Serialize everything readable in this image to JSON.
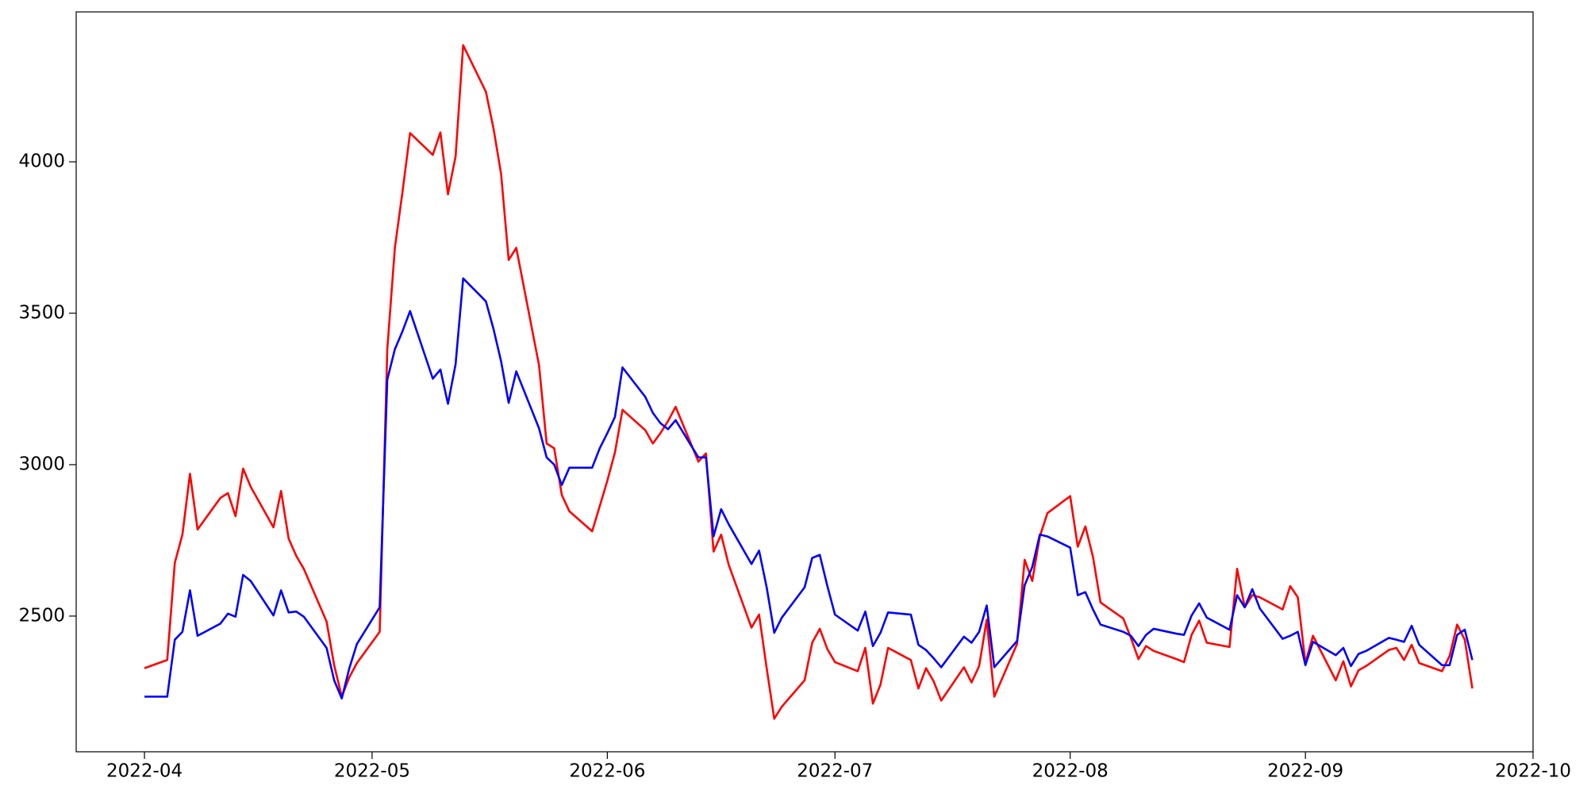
{
  "chart_data": {
    "type": "line",
    "x": [
      "2022-04-01",
      "2022-04-04",
      "2022-04-05",
      "2022-04-06",
      "2022-04-07",
      "2022-04-08",
      "2022-04-11",
      "2022-04-12",
      "2022-04-13",
      "2022-04-14",
      "2022-04-15",
      "2022-04-18",
      "2022-04-19",
      "2022-04-20",
      "2022-04-21",
      "2022-04-22",
      "2022-04-25",
      "2022-04-26",
      "2022-04-27",
      "2022-04-28",
      "2022-04-29",
      "2022-05-02",
      "2022-05-03",
      "2022-05-04",
      "2022-05-05",
      "2022-05-06",
      "2022-05-09",
      "2022-05-10",
      "2022-05-11",
      "2022-05-12",
      "2022-05-13",
      "2022-05-16",
      "2022-05-17",
      "2022-05-18",
      "2022-05-19",
      "2022-05-20",
      "2022-05-23",
      "2022-05-24",
      "2022-05-25",
      "2022-05-26",
      "2022-05-27",
      "2022-05-30",
      "2022-05-31",
      "2022-06-01",
      "2022-06-02",
      "2022-06-03",
      "2022-06-06",
      "2022-06-07",
      "2022-06-08",
      "2022-06-09",
      "2022-06-10",
      "2022-06-13",
      "2022-06-14",
      "2022-06-15",
      "2022-06-16",
      "2022-06-17",
      "2022-06-20",
      "2022-06-21",
      "2022-06-22",
      "2022-06-23",
      "2022-06-24",
      "2022-06-27",
      "2022-06-28",
      "2022-06-29",
      "2022-06-30",
      "2022-07-01",
      "2022-07-04",
      "2022-07-05",
      "2022-07-06",
      "2022-07-07",
      "2022-07-08",
      "2022-07-11",
      "2022-07-12",
      "2022-07-13",
      "2022-07-14",
      "2022-07-15",
      "2022-07-18",
      "2022-07-19",
      "2022-07-20",
      "2022-07-21",
      "2022-07-22",
      "2022-07-25",
      "2022-07-26",
      "2022-07-27",
      "2022-07-28",
      "2022-07-29",
      "2022-08-01",
      "2022-08-02",
      "2022-08-03",
      "2022-08-04",
      "2022-08-05",
      "2022-08-08",
      "2022-08-09",
      "2022-08-10",
      "2022-08-11",
      "2022-08-12",
      "2022-08-15",
      "2022-08-16",
      "2022-08-17",
      "2022-08-18",
      "2022-08-19",
      "2022-08-22",
      "2022-08-23",
      "2022-08-24",
      "2022-08-25",
      "2022-08-26",
      "2022-08-29",
      "2022-08-30",
      "2022-08-31",
      "2022-09-01",
      "2022-09-02",
      "2022-09-05",
      "2022-09-06",
      "2022-09-07",
      "2022-09-08",
      "2022-09-09",
      "2022-09-12",
      "2022-09-13",
      "2022-09-14",
      "2022-09-15",
      "2022-09-16",
      "2022-09-19",
      "2022-09-20",
      "2022-09-21",
      "2022-09-22",
      "2022-09-23"
    ],
    "series": [
      {
        "color": "red",
        "values": [
          2328,
          2355,
          2676,
          2769,
          2970,
          2786,
          2890,
          2906,
          2830,
          2987,
          2927,
          2793,
          2913,
          2756,
          2699,
          2656,
          2482,
          2338,
          2234,
          2298,
          2345,
          2448,
          3381,
          3716,
          3900,
          4095,
          4023,
          4097,
          3893,
          4017,
          4385,
          4231,
          4110,
          3960,
          3676,
          3716,
          3328,
          3070,
          3054,
          2900,
          2846,
          2780,
          2863,
          2947,
          3040,
          3181,
          3114,
          3070,
          3104,
          3144,
          3191,
          3010,
          3037,
          2713,
          2769,
          2669,
          2462,
          2505,
          2328,
          2161,
          2201,
          2288,
          2412,
          2458,
          2391,
          2348,
          2318,
          2395,
          2211,
          2274,
          2395,
          2355,
          2261,
          2328,
          2285,
          2221,
          2331,
          2281,
          2335,
          2488,
          2234,
          2408,
          2686,
          2616,
          2763,
          2840,
          2896,
          2729,
          2796,
          2696,
          2545,
          2492,
          2428,
          2358,
          2401,
          2385,
          2358,
          2348,
          2438,
          2485,
          2412,
          2398,
          2656,
          2529,
          2569,
          2562,
          2522,
          2599,
          2562,
          2345,
          2435,
          2288,
          2351,
          2268,
          2321,
          2335,
          2388,
          2395,
          2355,
          2405,
          2345,
          2318,
          2368,
          2472,
          2422,
          2261
        ]
      },
      {
        "color": "blue",
        "values": [
          2234,
          2234,
          2422,
          2448,
          2585,
          2435,
          2475,
          2508,
          2498,
          2636,
          2616,
          2502,
          2585,
          2512,
          2515,
          2498,
          2395,
          2288,
          2228,
          2328,
          2408,
          2529,
          3281,
          3381,
          3440,
          3507,
          3284,
          3314,
          3201,
          3331,
          3615,
          3539,
          3448,
          3341,
          3204,
          3308,
          3120,
          3024,
          3000,
          2933,
          2990,
          2990,
          3054,
          3104,
          3157,
          3321,
          3224,
          3171,
          3137,
          3117,
          3147,
          3024,
          3024,
          2763,
          2853,
          2803,
          2672,
          2716,
          2595,
          2445,
          2495,
          2595,
          2692,
          2702,
          2599,
          2505,
          2452,
          2515,
          2401,
          2445,
          2512,
          2505,
          2405,
          2388,
          2361,
          2331,
          2432,
          2412,
          2448,
          2535,
          2331,
          2418,
          2602,
          2662,
          2769,
          2763,
          2726,
          2569,
          2579,
          2522,
          2472,
          2448,
          2435,
          2401,
          2438,
          2458,
          2442,
          2438,
          2502,
          2542,
          2495,
          2455,
          2569,
          2529,
          2589,
          2525,
          2425,
          2435,
          2448,
          2338,
          2415,
          2371,
          2395,
          2335,
          2375,
          2385,
          2428,
          2422,
          2415,
          2468,
          2405,
          2338,
          2338,
          2438,
          2455,
          2355
        ]
      }
    ],
    "xlim": [
      "2022-03-23",
      "2022-10-01"
    ],
    "xticks": [
      {
        "value": "2022-04-01",
        "label": "2022-04"
      },
      {
        "value": "2022-05-01",
        "label": "2022-05"
      },
      {
        "value": "2022-06-01",
        "label": "2022-06"
      },
      {
        "value": "2022-07-01",
        "label": "2022-07"
      },
      {
        "value": "2022-08-01",
        "label": "2022-08"
      },
      {
        "value": "2022-09-01",
        "label": "2022-09"
      },
      {
        "value": "2022-10-01",
        "label": "2022-10"
      }
    ],
    "ylim": [
      2052,
      4495
    ],
    "yticks": [
      2500,
      3000,
      3500,
      4000
    ],
    "grid": false
  }
}
